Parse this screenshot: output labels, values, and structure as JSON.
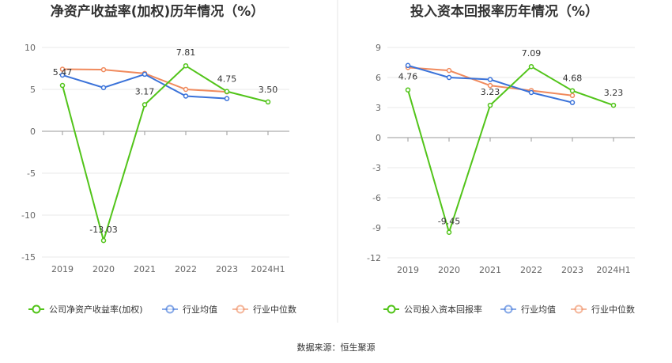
{
  "source_label": "数据来源：恒生聚源",
  "colors": {
    "company": "#52c41a",
    "industry_avg": "#3a72d9",
    "industry_median": "#f08a5d",
    "grid": "#e8e8e8",
    "axis": "#999999",
    "divider": "#e6e6e6"
  },
  "chart_data": [
    {
      "type": "line",
      "title": "净资产收益率(加权)历年情况（%）",
      "categories": [
        "2019",
        "2020",
        "2021",
        "2022",
        "2023",
        "2024H1"
      ],
      "ylim": [
        -15,
        10
      ],
      "yticks": [
        -15,
        -10,
        -5,
        0,
        5,
        10
      ],
      "grid": true,
      "legend_position": "bottom",
      "series": [
        {
          "name": "公司净资产收益率(加权)",
          "color_key": "company",
          "values": [
            5.47,
            -13.03,
            3.17,
            7.81,
            4.75,
            3.5
          ],
          "labels": [
            "5.47",
            "-13.03",
            "3.17",
            "7.81",
            "4.75",
            "3.50"
          ]
        },
        {
          "name": "行业均值",
          "color_key": "industry_avg",
          "values": [
            6.7,
            5.2,
            6.8,
            4.2,
            3.9,
            null
          ]
        },
        {
          "name": "行业中位数",
          "color_key": "industry_median",
          "values": [
            7.4,
            7.35,
            6.9,
            5.0,
            4.7,
            null
          ]
        }
      ]
    },
    {
      "type": "line",
      "title": "投入资本回报率历年情况（%）",
      "categories": [
        "2019",
        "2020",
        "2021",
        "2022",
        "2023",
        "2024H1"
      ],
      "ylim": [
        -12,
        9
      ],
      "yticks": [
        -12,
        -9,
        -6,
        -3,
        0,
        3,
        6,
        9
      ],
      "grid": true,
      "legend_position": "bottom",
      "series": [
        {
          "name": "公司投入资本回报率",
          "color_key": "company",
          "values": [
            4.76,
            -9.45,
            3.23,
            7.09,
            4.68,
            3.23
          ],
          "labels": [
            "4.76",
            "-9.45",
            "3.23",
            "7.09",
            "4.68",
            "3.23"
          ]
        },
        {
          "name": "行业均值",
          "color_key": "industry_avg",
          "values": [
            7.2,
            6.0,
            5.8,
            4.5,
            3.5,
            null
          ]
        },
        {
          "name": "行业中位数",
          "color_key": "industry_median",
          "values": [
            7.0,
            6.7,
            5.2,
            4.7,
            4.2,
            null
          ]
        }
      ]
    }
  ]
}
